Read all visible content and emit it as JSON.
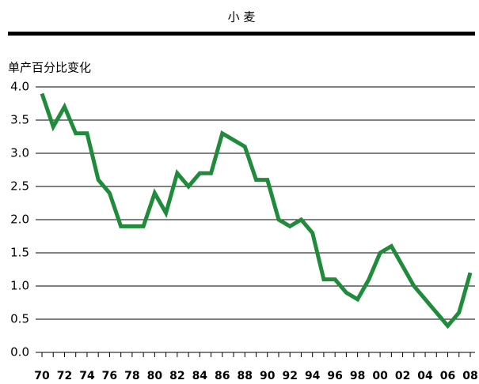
{
  "chart_data": {
    "type": "line",
    "title": "小 麦",
    "y_label": "单产百分比变化",
    "categories": [
      "70",
      null,
      "72",
      null,
      "74",
      null,
      "76",
      null,
      "78",
      null,
      "80",
      null,
      "82",
      null,
      "84",
      null,
      "86",
      null,
      "88",
      null,
      "90",
      null,
      "92",
      null,
      "94",
      null,
      "96",
      null,
      "98",
      null,
      "00",
      null,
      "02",
      null,
      "04",
      null,
      "06",
      null,
      "08"
    ],
    "series": [
      {
        "color": "#1f8b3b",
        "values": [
          3.9,
          3.4,
          3.7,
          3.3,
          3.3,
          2.6,
          2.4,
          1.9,
          1.9,
          1.9,
          2.4,
          2.1,
          2.7,
          2.5,
          2.7,
          2.7,
          3.3,
          3.2,
          3.1,
          2.6,
          2.6,
          2.0,
          1.9,
          2.0,
          1.8,
          1.1,
          1.1,
          0.9,
          0.8,
          1.1,
          1.5,
          1.6,
          1.3,
          1.0,
          0.8,
          0.6,
          0.4,
          0.6,
          1.2
        ]
      }
    ],
    "ylim": [
      0,
      4
    ],
    "yticks": [
      {
        "value": 0,
        "label": "0.0"
      },
      0.5,
      {
        "value": 1,
        "label": "1.0"
      },
      1.5,
      {
        "value": 2,
        "label": "2.0"
      },
      2.5,
      {
        "value": 3,
        "label": "3.0"
      },
      3.5,
      {
        "value": 4,
        "label": "4.0"
      }
    ],
    "grid": true
  }
}
